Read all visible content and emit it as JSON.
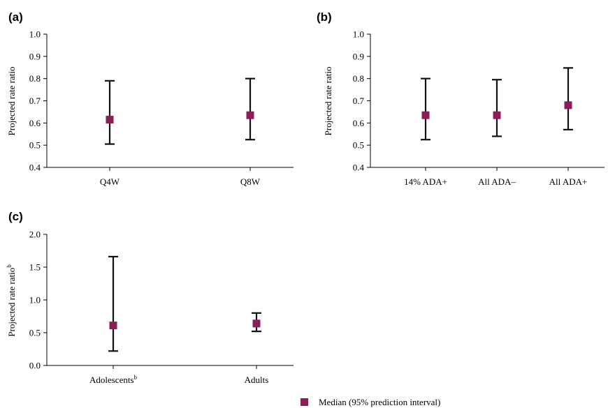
{
  "marker_color": "#8B1E57",
  "chart_data": [
    {
      "panel": "(a)",
      "type": "scatter",
      "ylabel": "Projected rate ratio",
      "ylabel_sup": "",
      "ylim": [
        0.4,
        1.0
      ],
      "yticks": [
        0.4,
        0.5,
        0.6,
        0.7,
        0.8,
        0.9,
        1.0
      ],
      "ytick_labels": [
        "0.4",
        "0.5",
        "0.6",
        "0.7",
        "0.8",
        "0.9",
        "1.0"
      ],
      "categories": [
        "Q4W",
        "Q8W"
      ],
      "category_sups": [
        "",
        ""
      ],
      "median": [
        0.615,
        0.635
      ],
      "lower": [
        0.505,
        0.525
      ],
      "upper": [
        0.79,
        0.8
      ]
    },
    {
      "panel": "(b)",
      "type": "scatter",
      "ylabel": "Projected rate ratio",
      "ylabel_sup": "",
      "ylim": [
        0.4,
        1.0
      ],
      "yticks": [
        0.4,
        0.5,
        0.6,
        0.7,
        0.8,
        0.9,
        1.0
      ],
      "ytick_labels": [
        "0.4",
        "0.5",
        "0.6",
        "0.7",
        "0.8",
        "0.9",
        "1.0"
      ],
      "categories": [
        "14% ADA+",
        "All ADA–",
        "All ADA+"
      ],
      "category_sups": [
        "",
        "",
        ""
      ],
      "median": [
        0.635,
        0.635,
        0.68
      ],
      "lower": [
        0.525,
        0.54,
        0.57
      ],
      "upper": [
        0.8,
        0.795,
        0.848
      ]
    },
    {
      "panel": "(c)",
      "type": "scatter",
      "ylabel": "Projected rate ratio",
      "ylabel_sup": "b",
      "ylim": [
        0.0,
        2.0
      ],
      "yticks": [
        0.0,
        0.5,
        1.0,
        1.5,
        2.0
      ],
      "ytick_labels": [
        "0.0",
        "0.5",
        "1.0",
        "1.5",
        "2.0"
      ],
      "categories": [
        "Adolescents",
        "Adults"
      ],
      "category_sups": [
        "b",
        ""
      ],
      "median": [
        0.61,
        0.64
      ],
      "lower": [
        0.22,
        0.52
      ],
      "upper": [
        1.66,
        0.8
      ]
    }
  ],
  "legend": {
    "label": "Median (95% prediction interval)"
  }
}
